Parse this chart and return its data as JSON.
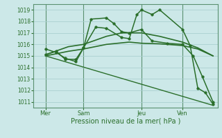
{
  "background_color": "#cce8e8",
  "grid_color": "#aacfcf",
  "line_color": "#2a6e2a",
  "marker_color": "#2a6e2a",
  "xlabel": "Pression niveau de la mer( hPa )",
  "ylim": [
    1010.5,
    1019.5
  ],
  "yticks": [
    1011,
    1012,
    1013,
    1014,
    1015,
    1016,
    1017,
    1018,
    1019
  ],
  "xlim": [
    -0.3,
    11.8
  ],
  "xtick_positions": [
    0.5,
    3.0,
    6.8,
    9.5
  ],
  "xtick_labels": [
    "Mer",
    "Sam",
    "Jeu",
    "Ven"
  ],
  "vlines_x": [
    0.5,
    3.0,
    6.8,
    9.5
  ],
  "lines": [
    {
      "x": [
        0.5,
        11.5
      ],
      "y": [
        1015.0,
        1010.7
      ],
      "marker": null,
      "markersize": 0,
      "linewidth": 1.0,
      "linestyle": "solid"
    },
    {
      "x": [
        0.5,
        2.0,
        3.0,
        4.5,
        6.0,
        6.8,
        8.0,
        9.5,
        10.5,
        11.5
      ],
      "y": [
        1015.0,
        1015.4,
        1015.6,
        1016.0,
        1016.2,
        1016.1,
        1016.05,
        1015.9,
        1015.6,
        1015.0
      ],
      "marker": null,
      "markersize": 0,
      "linewidth": 1.2,
      "linestyle": "solid"
    },
    {
      "x": [
        0.5,
        2.0,
        3.0,
        4.5,
        5.5,
        6.8,
        8.0,
        9.5,
        10.5,
        11.5
      ],
      "y": [
        1015.1,
        1015.8,
        1016.0,
        1016.7,
        1017.0,
        1017.0,
        1016.7,
        1016.2,
        1015.7,
        1015.0
      ],
      "marker": null,
      "markersize": 0,
      "linewidth": 1.2,
      "linestyle": "solid"
    },
    {
      "x": [
        0.5,
        1.2,
        1.8,
        2.5,
        3.0,
        3.5,
        4.5,
        5.0,
        5.5,
        6.0,
        6.8,
        7.5,
        8.5,
        9.5,
        10.2,
        10.8,
        11.5
      ],
      "y": [
        1015.6,
        1015.3,
        1014.8,
        1014.5,
        1015.7,
        1018.2,
        1018.3,
        1017.8,
        1017.1,
        1017.0,
        1017.3,
        1016.3,
        1016.1,
        1016.0,
        1015.0,
        1013.2,
        1011.0
      ],
      "marker": "o",
      "markersize": 2.5,
      "linewidth": 1.1,
      "linestyle": "solid"
    },
    {
      "x": [
        0.5,
        1.2,
        1.8,
        2.5,
        3.0,
        3.8,
        4.5,
        5.5,
        6.0,
        6.5,
        6.8,
        7.5,
        8.0,
        9.5,
        10.0,
        10.5,
        11.0,
        11.5
      ],
      "y": [
        1015.1,
        1015.4,
        1014.7,
        1014.7,
        1015.7,
        1017.5,
        1017.4,
        1016.6,
        1016.5,
        1018.6,
        1019.0,
        1018.6,
        1019.0,
        1017.3,
        1015.9,
        1012.2,
        1011.8,
        1010.8
      ],
      "marker": "o",
      "markersize": 2.5,
      "linewidth": 1.1,
      "linestyle": "solid"
    }
  ]
}
